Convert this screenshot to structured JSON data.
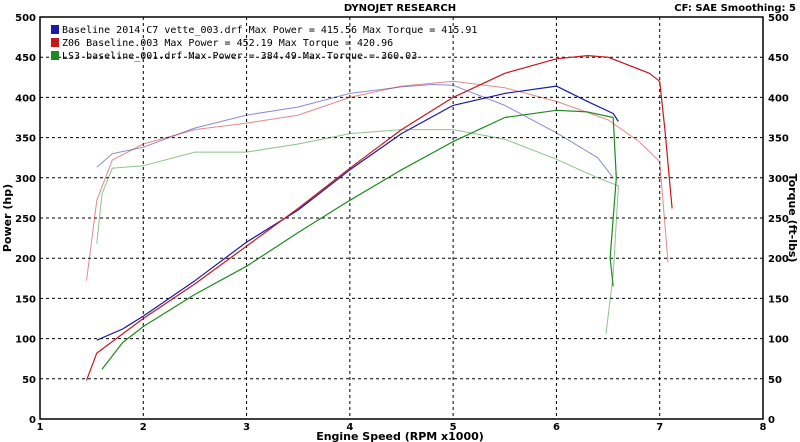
{
  "header": {
    "title": "DYNOJET RESEARCH",
    "settings": "CF: SAE   Smoothing: 5"
  },
  "colors": {
    "blue": "#1a1aa8",
    "red": "#c8161a",
    "green": "#1e8a1e"
  },
  "chart_data": {
    "type": "line",
    "xlabel": "Engine Speed (RPM x1000)",
    "ylabel_left": "Power (hp)",
    "ylabel_right": "Torque (ft-lbs)",
    "xlim": [
      1,
      8
    ],
    "ylim": [
      0,
      500
    ],
    "x_ticks": [
      "1",
      "2",
      "3",
      "4",
      "5",
      "6",
      "7",
      "8"
    ],
    "y_ticks": [
      "0",
      "50",
      "100",
      "150",
      "200",
      "250",
      "300",
      "350",
      "400",
      "450",
      "500"
    ],
    "grid": true,
    "legend_position": "top-left",
    "legend": [
      "Baseline 2014 C7 vette_003.drf Max Power = 415.56    Max Torque = 415.91",
      "Z06 Baseline.003 Max Power = 452.19    Max Torque = 420.96",
      "LS3 baseline_001.drf Max Power = 384.49    Max Torque = 360.03"
    ],
    "series": [
      {
        "name": "Baseline 2014 C7 vette_003.drf",
        "kind": "power",
        "color": "#1a1aa8",
        "x": [
          1.55,
          1.8,
          2.0,
          2.5,
          3.0,
          3.5,
          4.0,
          4.5,
          5.0,
          5.5,
          6.0,
          6.3,
          6.55,
          6.6
        ],
        "y": [
          98,
          112,
          128,
          172,
          220,
          260,
          310,
          355,
          390,
          405,
          414,
          395,
          380,
          370
        ]
      },
      {
        "name": "Baseline 2014 C7 vette_003.drf",
        "kind": "torque",
        "color": "#1a1aa8",
        "x": [
          1.55,
          1.7,
          2.0,
          2.5,
          3.0,
          3.5,
          4.0,
          4.5,
          4.8,
          5.0,
          5.5,
          6.0,
          6.4,
          6.55
        ],
        "y": [
          313,
          330,
          338,
          362,
          378,
          388,
          405,
          413,
          416,
          415,
          390,
          356,
          325,
          300
        ]
      },
      {
        "name": "Z06 Baseline.003",
        "kind": "power",
        "color": "#c8161a",
        "x": [
          1.45,
          1.55,
          2.0,
          2.5,
          3.0,
          3.5,
          4.0,
          4.5,
          5.0,
          5.5,
          6.0,
          6.3,
          6.5,
          6.9,
          7.0,
          7.05,
          7.12
        ],
        "y": [
          48,
          82,
          125,
          168,
          215,
          262,
          312,
          360,
          400,
          430,
          448,
          452,
          450,
          430,
          420,
          360,
          262
        ]
      },
      {
        "name": "Z06 Baseline.003",
        "kind": "torque",
        "color": "#c8161a",
        "x": [
          1.45,
          1.55,
          1.7,
          2.0,
          2.5,
          3.0,
          3.5,
          4.0,
          4.5,
          5.0,
          5.5,
          6.0,
          6.5,
          6.8,
          7.0,
          7.08
        ],
        "y": [
          172,
          272,
          322,
          342,
          360,
          368,
          378,
          400,
          414,
          420,
          412,
          395,
          372,
          345,
          320,
          195
        ]
      },
      {
        "name": "LS3 baseline_001.drf",
        "kind": "power",
        "color": "#1e8a1e",
        "x": [
          1.6,
          1.8,
          2.0,
          2.5,
          3.0,
          3.5,
          4.0,
          4.5,
          5.0,
          5.5,
          6.0,
          6.3,
          6.55,
          6.58,
          6.52,
          6.55
        ],
        "y": [
          62,
          95,
          115,
          155,
          190,
          232,
          272,
          310,
          345,
          375,
          384,
          382,
          375,
          300,
          200,
          165
        ]
      },
      {
        "name": "LS3 baseline_001.drf",
        "kind": "torque",
        "color": "#1e8a1e",
        "x": [
          1.55,
          1.6,
          1.7,
          2.0,
          2.5,
          3.0,
          3.5,
          4.0,
          4.5,
          5.0,
          5.5,
          6.0,
          6.4,
          6.6,
          6.55,
          6.48
        ],
        "y": [
          218,
          280,
          312,
          315,
          332,
          332,
          342,
          355,
          360,
          360,
          348,
          323,
          300,
          290,
          180,
          106
        ]
      }
    ]
  }
}
